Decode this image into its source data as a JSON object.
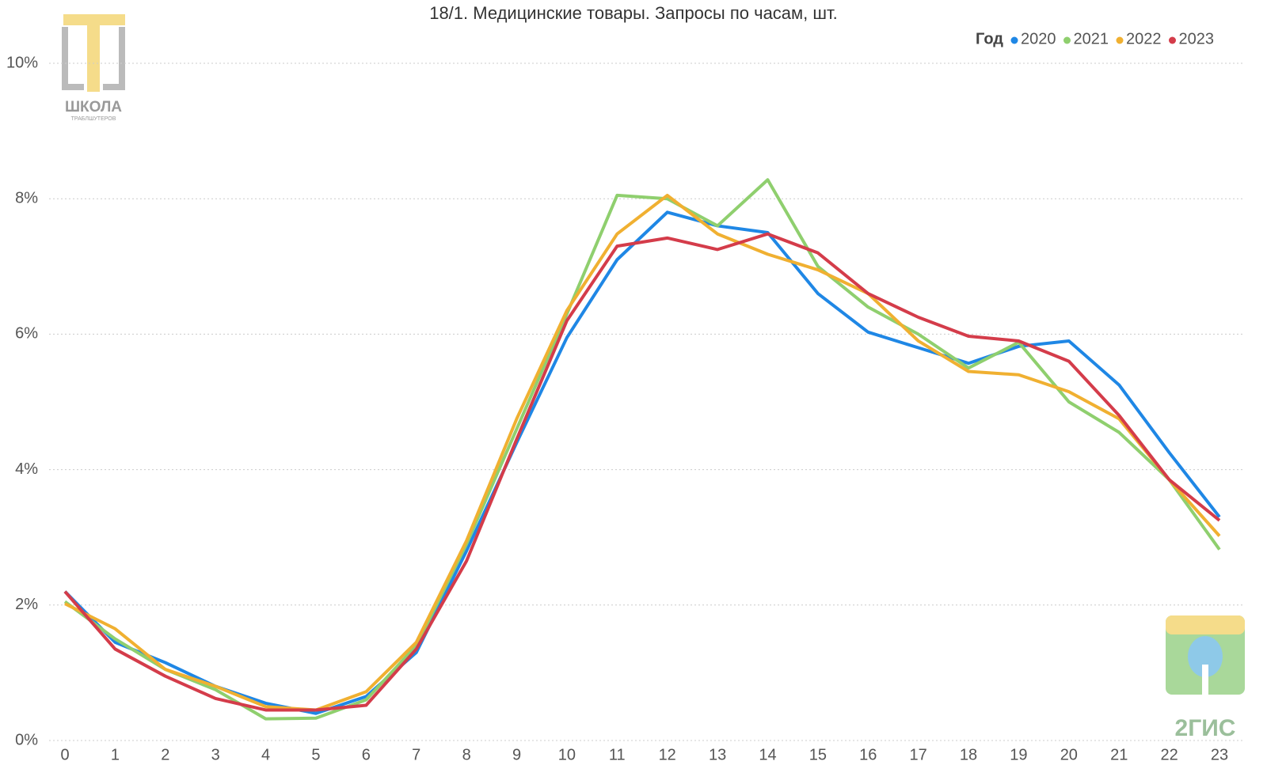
{
  "chart_data": {
    "type": "line",
    "title": "18/1. Медицинские товары. Запросы по часам, шт.",
    "legend_title": "Год",
    "legend_position": "top-right",
    "grid": true,
    "x": [
      0,
      1,
      2,
      3,
      4,
      5,
      6,
      7,
      8,
      9,
      10,
      11,
      12,
      13,
      14,
      15,
      16,
      17,
      18,
      19,
      20,
      21,
      22,
      23
    ],
    "xlim": [
      0,
      23
    ],
    "ylim": [
      0,
      10
    ],
    "yticks": [
      {
        "value": 0,
        "label": "0%"
      },
      {
        "value": 2,
        "label": "2%"
      },
      {
        "value": 4,
        "label": "4%"
      },
      {
        "value": 6,
        "label": "6%"
      },
      {
        "value": 8,
        "label": "8%"
      },
      {
        "value": 10,
        "label": "10%"
      }
    ],
    "series": [
      {
        "name": "2020",
        "color": "#1f87e5",
        "values": [
          2.2,
          1.45,
          1.15,
          0.8,
          0.55,
          0.4,
          0.65,
          1.3,
          2.8,
          4.4,
          5.95,
          7.1,
          7.8,
          7.6,
          7.5,
          6.6,
          6.03,
          5.8,
          5.57,
          5.82,
          5.9,
          5.25,
          4.25,
          3.3
        ]
      },
      {
        "name": "2021",
        "color": "#8fcf6e",
        "values": [
          2.05,
          1.5,
          1.05,
          0.75,
          0.32,
          0.33,
          0.6,
          1.4,
          2.9,
          4.6,
          6.3,
          8.05,
          8.0,
          7.6,
          8.28,
          7.0,
          6.4,
          6.0,
          5.5,
          5.88,
          5.0,
          4.55,
          3.85,
          2.82
        ]
      },
      {
        "name": "2022",
        "color": "#f0b031",
        "values": [
          2.02,
          1.65,
          1.05,
          0.8,
          0.5,
          0.45,
          0.72,
          1.45,
          2.95,
          4.75,
          6.35,
          7.48,
          8.05,
          7.48,
          7.18,
          6.95,
          6.6,
          5.9,
          5.45,
          5.4,
          5.15,
          4.75,
          3.85,
          3.02
        ]
      },
      {
        "name": "2023",
        "color": "#d43c4a",
        "values": [
          2.2,
          1.35,
          0.95,
          0.62,
          0.45,
          0.45,
          0.52,
          1.35,
          2.65,
          4.45,
          6.2,
          7.3,
          7.42,
          7.25,
          7.48,
          7.2,
          6.6,
          6.25,
          5.97,
          5.9,
          5.6,
          4.8,
          3.85,
          3.25
        ]
      }
    ]
  },
  "logos": {
    "school_name": "ШКОЛА",
    "school_sub": "ТРАБЛШУТЕРОВ",
    "gis": "2ГИС"
  }
}
